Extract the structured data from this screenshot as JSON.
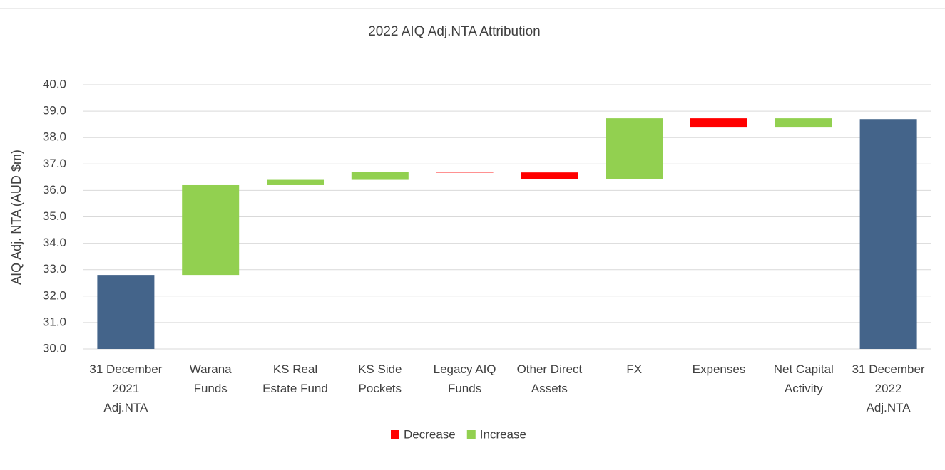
{
  "chart_data": {
    "type": "waterfall",
    "title": "2022 AIQ Adj.NTA Attribution",
    "y_label": "AIQ Adj. NTA (AUD $m)",
    "categories": [
      "31 December\n2021\nAdj.NTA",
      "Warana\nFunds",
      "KS Real\nEstate Fund",
      "KS Side\nPockets",
      "Legacy AIQ\nFunds",
      "Other Direct\nAssets",
      "FX",
      "Expenses",
      "Net Capital\nActivity",
      "31 December\n2022\nAdj.NTA"
    ],
    "values": [
      32.8,
      3.4,
      0.2,
      0.3,
      -0.02,
      -0.25,
      2.3,
      -0.35,
      0.35,
      38.7
    ],
    "measure": [
      "total",
      "relative",
      "relative",
      "relative",
      "relative",
      "relative",
      "relative",
      "relative",
      "relative",
      "total"
    ],
    "total_color": "#44648a",
    "series": [
      {
        "name": "Decrease",
        "color": "#ff0000"
      },
      {
        "name": "Increase",
        "color": "#92d050"
      }
    ],
    "ylim": [
      30,
      40
    ],
    "yticks": [
      {
        "value": 30,
        "label": "30.0"
      },
      {
        "value": 31,
        "label": "31.0"
      },
      {
        "value": 32,
        "label": "32.0"
      },
      {
        "value": 33,
        "label": "33.0"
      },
      {
        "value": 34,
        "label": "34.0"
      },
      {
        "value": 35,
        "label": "35.0"
      },
      {
        "value": 36,
        "label": "36.0"
      },
      {
        "value": 37,
        "label": "37.0"
      },
      {
        "value": 38,
        "label": "38.0"
      },
      {
        "value": 39,
        "label": "39.0"
      },
      {
        "value": 40,
        "label": "40.0"
      }
    ],
    "grid": true
  }
}
